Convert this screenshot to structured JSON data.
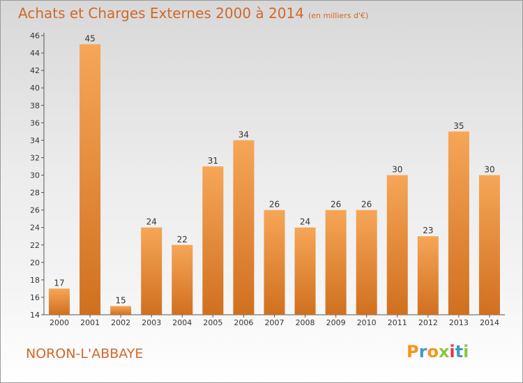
{
  "title": "Achats et Charges Externes 2000 à 2014",
  "unit_note": "(en milliers d'€)",
  "commune": "NORON-L'ABBAYE",
  "logo": "Proxiti",
  "colors": {
    "title": "#d0682b",
    "bar_light": "#f6a657",
    "bar_dark": "#d0701f",
    "logo_letters": [
      "#f7941d",
      "#3d9ad1",
      "#f7941d",
      "#8cc63f",
      "#e2393d",
      "#3d9ad1",
      "#8cc63f"
    ]
  },
  "chart_data": {
    "type": "bar",
    "title": "Achats et Charges Externes 2000 à 2014",
    "subtitle": "(en milliers d'€)",
    "xlabel": "",
    "ylabel": "",
    "categories": [
      "2000",
      "2001",
      "2002",
      "2003",
      "2004",
      "2005",
      "2006",
      "2007",
      "2008",
      "2009",
      "2010",
      "2011",
      "2012",
      "2013",
      "2014"
    ],
    "values": [
      17,
      45,
      15,
      24,
      22,
      31,
      34,
      26,
      24,
      26,
      26,
      30,
      23,
      35,
      30
    ],
    "ylim": [
      14,
      46
    ],
    "yticks": [
      "14",
      "16",
      "18",
      "20",
      "22",
      "24",
      "26",
      "28",
      "30",
      "32",
      "34",
      "36",
      "38",
      "40",
      "42",
      "44",
      "46"
    ],
    "grid": false,
    "legend": "none"
  }
}
